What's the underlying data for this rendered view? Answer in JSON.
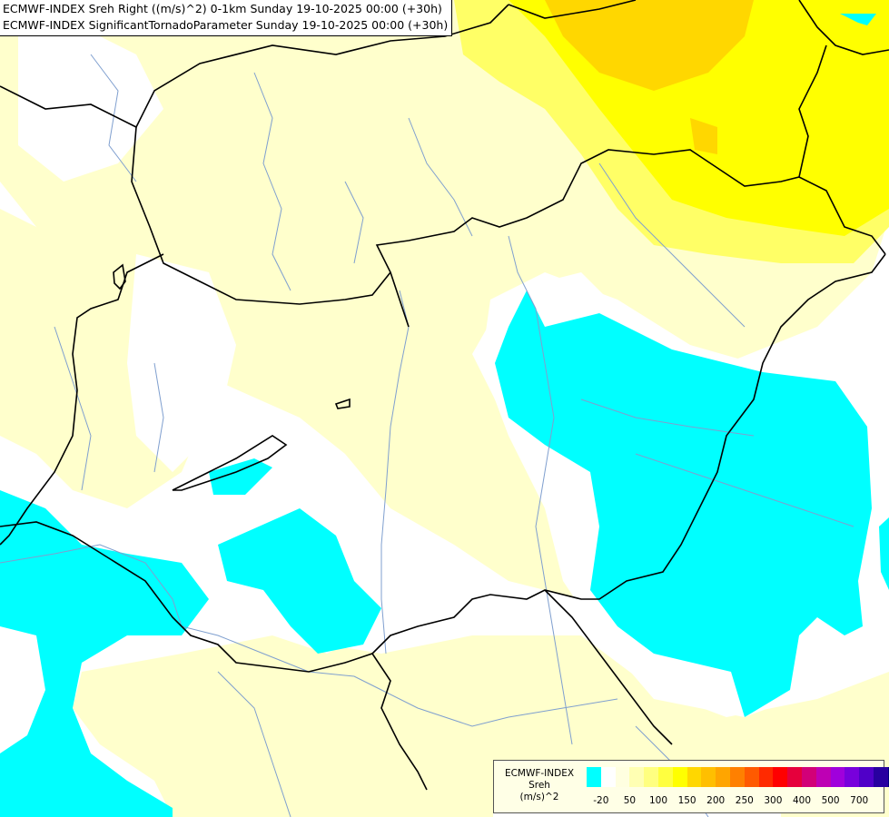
{
  "title": {
    "line1": "ECMWF-INDEX Sreh Right ((m/s)^2) 0-1km Sunday 19-10-2025 00:00 (+30h)",
    "line2": "ECMWF-INDEX SignificantTornadoParameter Sunday 19-10-2025 00:00 (+30h)"
  },
  "legend": {
    "label_line1": "ECMWF-INDEX",
    "label_line2": "Sreh",
    "label_line3": "(m/s)^2",
    "colors": [
      "#00ffff",
      "#ffffff",
      "#ffffe0",
      "#ffffb3",
      "#ffff80",
      "#ffff40",
      "#ffff00",
      "#ffd700",
      "#ffbf00",
      "#ffa500",
      "#ff8000",
      "#ff5a00",
      "#ff2a00",
      "#ff0000",
      "#e6003c",
      "#d20078",
      "#be00b4",
      "#a000dc",
      "#7800dc",
      "#5000c8",
      "#2800a0",
      "#000080"
    ],
    "ticks": [
      {
        "label": "-20",
        "index": 1
      },
      {
        "label": "50",
        "index": 3
      },
      {
        "label": "100",
        "index": 5
      },
      {
        "label": "150",
        "index": 7
      },
      {
        "label": "200",
        "index": 9
      },
      {
        "label": "250",
        "index": 11
      },
      {
        "label": "300",
        "index": 13
      },
      {
        "label": "400",
        "index": 15
      },
      {
        "label": "500",
        "index": 17
      },
      {
        "label": "700",
        "index": 19
      }
    ]
  },
  "map_colors": {
    "background": "#ffffff",
    "light_yellow": "#ffffcc",
    "yellow": "#ffff66",
    "bright_yellow": "#ffff00",
    "gold": "#ffd700",
    "cyan": "#00ffff",
    "rivers": "#7f9fcf",
    "borders": "#000000"
  }
}
